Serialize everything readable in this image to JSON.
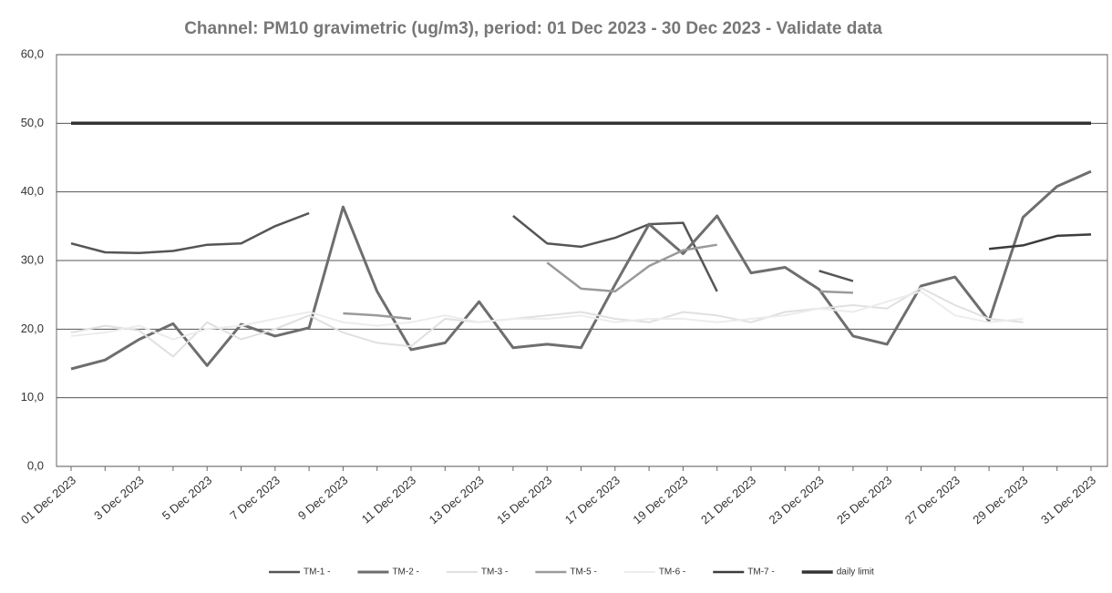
{
  "chart_data": {
    "type": "line",
    "title": "Channel: PM10 gravimetric (ug/m3), period: 01 Dec 2023 - 30 Dec 2023 - Validate data",
    "categories": [
      "01 Dec 2023",
      null,
      "3 Dec 2023",
      null,
      "5 Dec 2023",
      null,
      "7 Dec 2023",
      null,
      "9 Dec 2023",
      null,
      "11 Dec 2023",
      null,
      "13 Dec 2023",
      null,
      "15 Dec 2023",
      null,
      "17 Dec 2023",
      null,
      "19 Dec 2023",
      null,
      "21 Dec 2023",
      null,
      "23 Dec 2023",
      null,
      "25 Dec 2023",
      null,
      "27 Dec 2023",
      null,
      "29 Dec 2023",
      null,
      "31 Dec 2023"
    ],
    "series": [
      {
        "name": "TM-1 -",
        "color": "#555555",
        "width": 2.5,
        "values": [
          32.5,
          31.2,
          31.1,
          31.4,
          32.3,
          32.5,
          35.0,
          36.9,
          null,
          null,
          null,
          null,
          null,
          36.5,
          32.5,
          32.0,
          33.3,
          35.3,
          35.5,
          25.5,
          null,
          null,
          28.5,
          27.0,
          null,
          null,
          null,
          null,
          null,
          null,
          null
        ]
      },
      {
        "name": "TM-2 -",
        "color": "#6e6e6e",
        "width": 3,
        "values": [
          14.2,
          15.5,
          18.5,
          20.8,
          14.7,
          20.7,
          19.0,
          20.2,
          37.8,
          25.5,
          17.0,
          18.0,
          24.0,
          17.3,
          17.8,
          17.3,
          26.5,
          35.3,
          31.0,
          36.5,
          28.2,
          29.0,
          25.8,
          19.0,
          17.8,
          26.3,
          27.6,
          21.2,
          36.3,
          40.8,
          43.0
        ]
      },
      {
        "name": "TM-3 -",
        "color": "#e0e0e0",
        "width": 2,
        "values": [
          19.5,
          20.5,
          19.8,
          16.0,
          21.0,
          18.5,
          20.0,
          22.0,
          19.5,
          18.0,
          17.5,
          21.5,
          21.0,
          21.5,
          22.0,
          22.5,
          21.5,
          21.0,
          22.5,
          22.0,
          21.0,
          22.5,
          23.0,
          23.5,
          23.0,
          26.0,
          23.5,
          21.5,
          21.0,
          null,
          null
        ]
      },
      {
        "name": "TM-5 -",
        "color": "#9a9a9a",
        "width": 2.5,
        "values": [
          null,
          null,
          null,
          null,
          null,
          null,
          null,
          null,
          22.3,
          22.0,
          21.5,
          null,
          null,
          null,
          29.7,
          25.9,
          25.5,
          29.2,
          31.5,
          32.3,
          null,
          null,
          25.5,
          25.3,
          null,
          null,
          null,
          null,
          null,
          null,
          null
        ]
      },
      {
        "name": "TM-6 -",
        "color": "#ececec",
        "width": 2,
        "values": [
          19.0,
          19.5,
          20.5,
          18.5,
          20.0,
          20.5,
          21.5,
          22.5,
          21.0,
          20.5,
          21.0,
          22.0,
          21.0,
          21.5,
          21.5,
          22.0,
          21.0,
          21.5,
          21.5,
          21.0,
          21.5,
          22.0,
          23.0,
          22.5,
          24.0,
          25.5,
          22.0,
          21.0,
          21.5,
          null,
          null
        ]
      },
      {
        "name": "TM-7 -",
        "color": "#3c3c3c",
        "width": 2.5,
        "values": [
          null,
          null,
          null,
          null,
          null,
          null,
          null,
          null,
          null,
          null,
          null,
          null,
          null,
          null,
          null,
          null,
          null,
          null,
          null,
          null,
          null,
          null,
          null,
          null,
          null,
          null,
          null,
          31.7,
          32.2,
          33.6,
          33.8
        ]
      },
      {
        "name": "daily limit",
        "color": "#333333",
        "width": 3.5,
        "values": [
          50,
          50,
          50,
          50,
          50,
          50,
          50,
          50,
          50,
          50,
          50,
          50,
          50,
          50,
          50,
          50,
          50,
          50,
          50,
          50,
          50,
          50,
          50,
          50,
          50,
          50,
          50,
          50,
          50,
          50,
          50
        ]
      }
    ],
    "ylim": [
      0,
      60
    ],
    "yticks": [
      {
        "value": 0,
        "label": "0,0"
      },
      {
        "value": 10,
        "label": "10,0"
      },
      {
        "value": 20,
        "label": "20,0"
      },
      {
        "value": 30,
        "label": "30,0"
      },
      {
        "value": 40,
        "label": "40,0"
      },
      {
        "value": 50,
        "label": "50,0"
      },
      {
        "value": 60,
        "label": "60,0"
      }
    ],
    "grid": true,
    "legend": "bottom"
  }
}
